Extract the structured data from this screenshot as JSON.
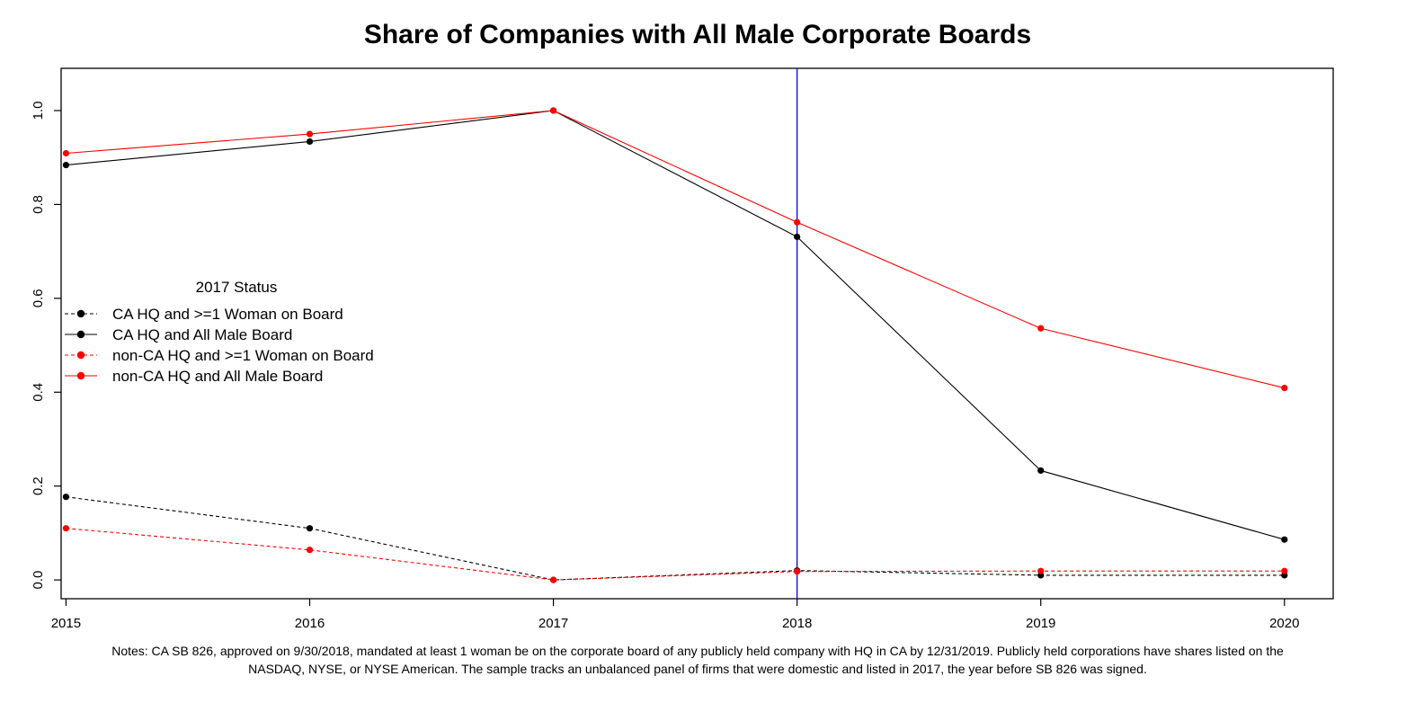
{
  "chart_data": {
    "type": "line",
    "title": "Share of Companies with All Male Corporate Boards",
    "xlabel": "",
    "ylabel": "",
    "x": [
      2015,
      2016,
      2017,
      2018,
      2019,
      2020
    ],
    "xlim": [
      2014.98,
      2020.2
    ],
    "ylim": [
      -0.04,
      1.09
    ],
    "x_ticks": [
      2015,
      2016,
      2017,
      2018,
      2019,
      2020
    ],
    "y_ticks": [
      0.0,
      0.2,
      0.4,
      0.6,
      0.8,
      1.0
    ],
    "y_tick_labels": [
      "0.0",
      "0.2",
      "0.4",
      "0.6",
      "0.8",
      "1.0"
    ],
    "grid": false,
    "legend": {
      "title": "2017 Status",
      "placement": "left-center"
    },
    "series": [
      {
        "name": "CA HQ and >=1 Woman on Board",
        "color": "#000000",
        "dashed": true,
        "values": [
          0.177,
          0.11,
          0.0,
          0.02,
          0.01,
          0.01
        ]
      },
      {
        "name": "CA HQ and All Male Board",
        "color": "#000000",
        "dashed": false,
        "values": [
          0.884,
          0.934,
          1.0,
          0.731,
          0.233,
          0.086
        ]
      },
      {
        "name": "non-CA HQ and >=1 Woman on Board",
        "color": "#ff0000",
        "dashed": true,
        "values": [
          0.11,
          0.064,
          0.0,
          0.018,
          0.019,
          0.019
        ]
      },
      {
        "name": "non-CA HQ and All Male Board",
        "color": "#ff0000",
        "dashed": false,
        "values": [
          0.909,
          0.95,
          1.0,
          0.762,
          0.536,
          0.409
        ]
      }
    ],
    "reference_line": {
      "x": 2018,
      "color": "#0000ff"
    },
    "notes": [
      "Notes: CA SB 826, approved on 9/30/2018, mandated at least 1 woman be on the corporate board of any publicly held company with HQ in CA by 12/31/2019. Publicly held corporations have shares listed on the",
      "NASDAQ, NYSE, or NYSE American. The sample tracks an unbalanced panel of firms that were domestic and listed in 2017, the year before SB 826 was signed."
    ]
  }
}
